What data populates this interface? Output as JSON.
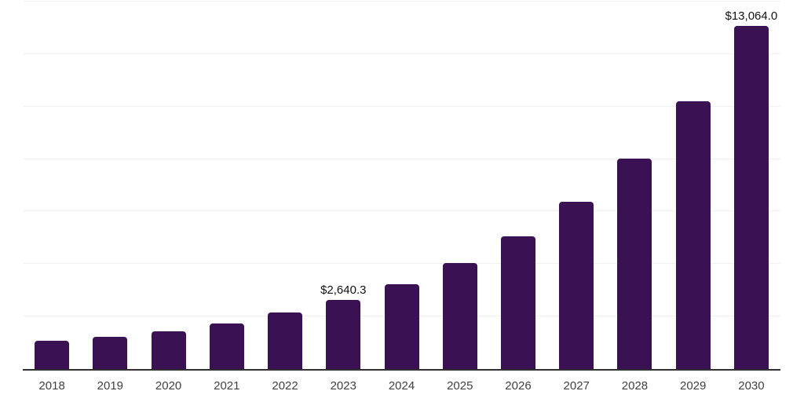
{
  "chart_data": {
    "type": "bar",
    "categories": [
      "2018",
      "2019",
      "2020",
      "2021",
      "2022",
      "2023",
      "2024",
      "2025",
      "2026",
      "2027",
      "2028",
      "2029",
      "2030"
    ],
    "values": [
      1090,
      1240,
      1450,
      1750,
      2140,
      2640.3,
      3240,
      4050,
      5055,
      6370,
      8030,
      10210,
      13064.0
    ],
    "value_labels": {
      "2023": "$2,640.3",
      "2030": "$13,064.0"
    },
    "ylim": [
      0,
      14000
    ],
    "gridline_interval": 2000,
    "grid": "horizontal-only",
    "legend": "none",
    "y_axis_tick_labels": "none",
    "colors": {
      "bar": "#3A1152",
      "gridline": "#f0f0f0",
      "axis_line": "#303030",
      "tick_label": "#404040",
      "value_label": "#111111",
      "background": "#ffffff"
    }
  }
}
